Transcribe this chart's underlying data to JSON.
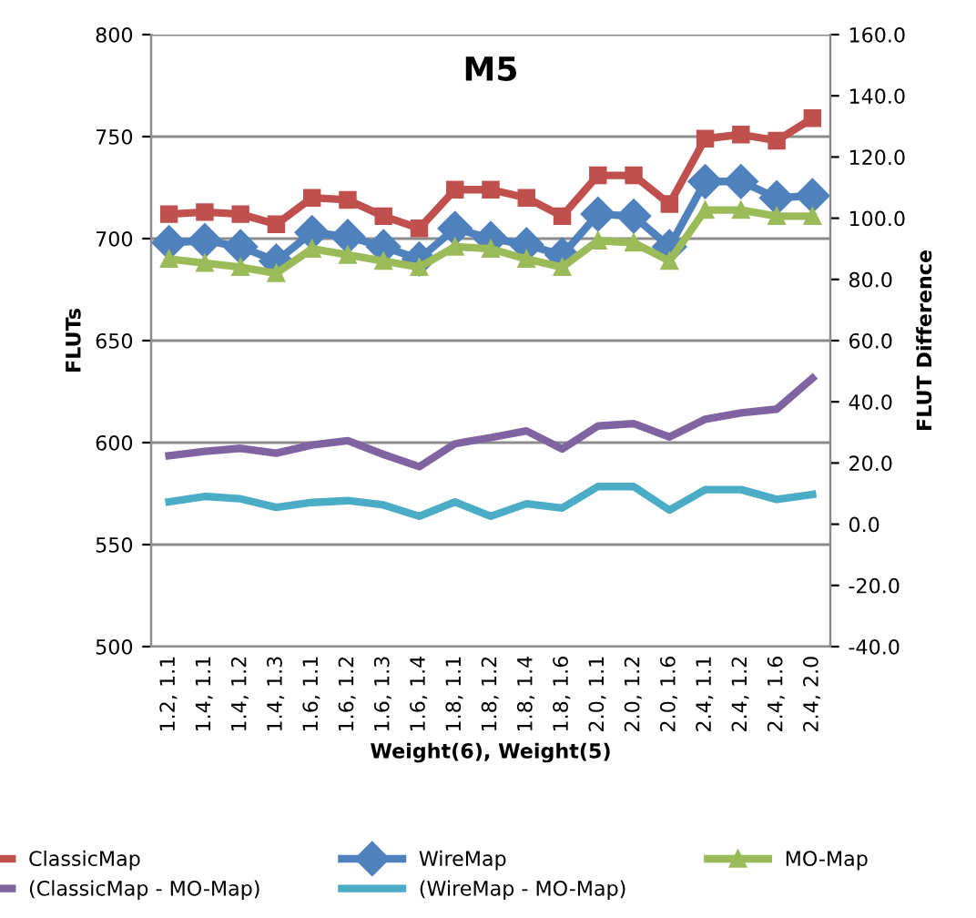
{
  "chart_data": {
    "type": "line",
    "title": "M5",
    "xlabel": "Weight(6), Weight(5)",
    "ylabel": "FLUTs",
    "y2label": "FLUT Difference",
    "categories": [
      "1.2, 1.1",
      "1.4, 1.1",
      "1.4, 1.2",
      "1.4, 1.3",
      "1.6, 1.1",
      "1.6, 1.2",
      "1.6, 1.3",
      "1.6, 1.4",
      "1.8, 1.1",
      "1.8, 1.2",
      "1.8, 1.4",
      "1.8, 1.6",
      "2.0, 1.1",
      "2.0, 1.2",
      "2.0, 1.6",
      "2.4, 1.1",
      "2.4, 1.2",
      "2.4, 1.6",
      "2.4, 2.0"
    ],
    "series": [
      {
        "name": "ClassicMap",
        "color": "#c0504d",
        "marker": "square",
        "values": [
          712,
          713,
          712,
          707,
          720,
          719,
          711,
          705,
          724,
          724,
          720,
          711,
          731,
          731,
          717,
          749,
          751,
          748,
          759
        ]
      },
      {
        "name": "WireMap",
        "color": "#4f81bd",
        "marker": "diamond",
        "values": [
          698,
          699,
          696,
          689,
          703,
          701,
          696,
          690,
          705,
          700,
          697,
          692,
          712,
          711,
          696,
          728,
          728,
          720,
          721
        ]
      },
      {
        "name": "MO-Map",
        "color": "#9bbb59",
        "marker": "triangle",
        "values": [
          690,
          688,
          686,
          683,
          695,
          692,
          689,
          686,
          696,
          695,
          690,
          686,
          699,
          698,
          689,
          714,
          714,
          711,
          711
        ]
      },
      {
        "name": "(ClassicMap - MO-Map)",
        "color": "#8064a2",
        "marker": "none",
        "axis": "y2",
        "values": [
          22.4,
          23.8,
          24.8,
          23.2,
          25.9,
          27.3,
          22.8,
          18.8,
          26.3,
          28.3,
          30.5,
          24.6,
          32.1,
          32.9,
          28.5,
          34.3,
          36.4,
          37.6,
          47.7
        ]
      },
      {
        "name": "(WireMap - MO-Map)",
        "color": "#4bacc6",
        "marker": "none",
        "axis": "y2",
        "values": [
          7.3,
          9.1,
          8.3,
          5.5,
          7.1,
          7.7,
          6.3,
          2.6,
          7.3,
          2.6,
          6.7,
          5.3,
          12.3,
          12.3,
          4.6,
          11.3,
          11.3,
          8.1,
          9.7
        ]
      }
    ],
    "ylim": [
      500,
      800
    ],
    "yticks": [
      500,
      550,
      600,
      650,
      700,
      750,
      800
    ],
    "y2lim": [
      -40,
      160
    ],
    "y2ticks": [
      {
        "value": -40,
        "label": "-40.0"
      },
      {
        "value": -20,
        "label": "-20.0"
      },
      {
        "value": 0,
        "label": "0.0"
      },
      {
        "value": 20,
        "label": "20.0"
      },
      {
        "value": 40,
        "label": "40.0"
      },
      {
        "value": 60,
        "label": "60.0"
      },
      {
        "value": 80,
        "label": "80.0"
      },
      {
        "value": 100,
        "label": "100.0"
      },
      {
        "value": 120,
        "label": "120.0"
      },
      {
        "value": 140,
        "label": "140.0"
      },
      {
        "value": 160,
        "label": "160.0"
      }
    ],
    "grid": "y",
    "legend": "bottom",
    "line_style": "solid"
  }
}
